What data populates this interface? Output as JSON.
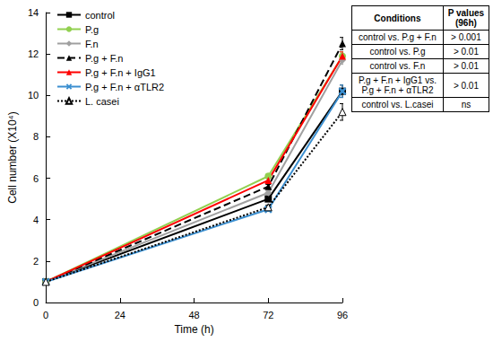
{
  "chart_data": {
    "type": "line",
    "x_label": "Time (h)",
    "y_label": "Cell number (X10⁴)",
    "x": [
      0,
      72,
      96
    ],
    "xlim": [
      0,
      96
    ],
    "xticks": [
      0,
      24,
      48,
      72,
      96
    ],
    "ylim": [
      0,
      14
    ],
    "yticks": [
      0,
      2,
      4,
      6,
      8,
      10,
      12,
      14
    ],
    "grid": false,
    "legend": "upper left",
    "series": [
      {
        "name": "control",
        "color": "#000000",
        "marker": "square",
        "line_style": "solid",
        "values": [
          1,
          5.0,
          10.2
        ],
        "errors": [
          0,
          0.1,
          0.3
        ]
      },
      {
        "name": "P.g",
        "color": "#92d050",
        "marker": "circle",
        "line_style": "solid",
        "values": [
          1,
          6.1,
          11.9
        ],
        "errors": [
          0,
          0.1,
          0.2
        ]
      },
      {
        "name": "F.n",
        "color": "#a0a0a0",
        "marker": "diamond",
        "line_style": "solid",
        "values": [
          1,
          5.3,
          11.7
        ],
        "errors": [
          0,
          0.1,
          0.2
        ]
      },
      {
        "name": "P.g + F.n",
        "color": "#000000",
        "marker": "triangle",
        "line_style": "dashed",
        "values": [
          1,
          5.6,
          12.5
        ],
        "errors": [
          0,
          0.1,
          0.3
        ]
      },
      {
        "name": "P.g + F.n + IgG1",
        "color": "#ff0000",
        "marker": "triangle",
        "line_style": "solid",
        "values": [
          1,
          5.9,
          11.9
        ],
        "errors": [
          0,
          0.1,
          0.2
        ]
      },
      {
        "name": "P.g + F.n + αTLR2",
        "color": "#3b8fd0",
        "marker": "x",
        "line_style": "solid",
        "values": [
          1,
          4.5,
          10.2
        ],
        "errors": [
          0,
          0.1,
          0.3
        ]
      },
      {
        "name": "L. casei",
        "color": "#000000",
        "marker": "triangle-open",
        "line_style": "dotted",
        "values": [
          1,
          4.6,
          9.2
        ],
        "errors": [
          0,
          0.1,
          0.4
        ]
      }
    ],
    "table": {
      "header": [
        "Conditions",
        "P values (96h)"
      ],
      "rows": [
        [
          "control vs. P.g + F.n",
          "> 0.001"
        ],
        [
          "control vs. P.g",
          "> 0.01"
        ],
        [
          "control vs. F.n",
          "> 0.01"
        ],
        [
          "P.g + F.n + IgG1 vs. P.g + F.n + αTLR2",
          "> 0.01"
        ],
        [
          "control vs. L.casei",
          "ns"
        ]
      ]
    }
  }
}
